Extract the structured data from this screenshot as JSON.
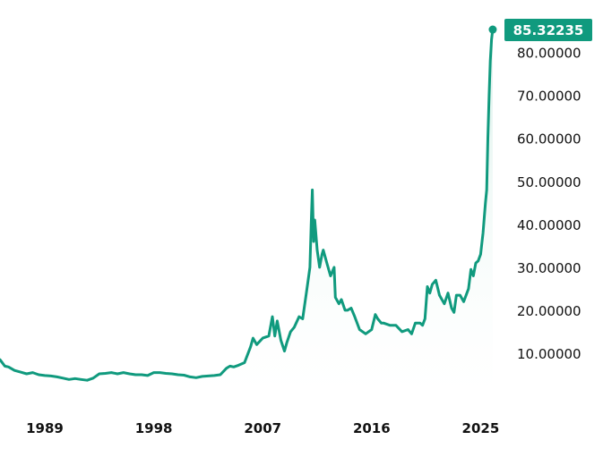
{
  "chart_data": {
    "type": "area",
    "title": "",
    "xlabel": "",
    "ylabel": "",
    "ylim": [
      0,
      87
    ],
    "xlim": [
      1985.3,
      2026.3
    ],
    "grid": false,
    "legend": "none",
    "y_ticks": [
      {
        "value": 10,
        "label": "10.00000"
      },
      {
        "value": 20,
        "label": "20.00000"
      },
      {
        "value": 30,
        "label": "30.00000"
      },
      {
        "value": 40,
        "label": "40.00000"
      },
      {
        "value": 50,
        "label": "50.00000"
      },
      {
        "value": 60,
        "label": "60.00000"
      },
      {
        "value": 70,
        "label": "70.00000"
      },
      {
        "value": 80,
        "label": "80.00000"
      }
    ],
    "x_ticks": [
      {
        "value": 1989,
        "label": "1989"
      },
      {
        "value": 1998,
        "label": "1998"
      },
      {
        "value": 2007,
        "label": "2007"
      },
      {
        "value": 2016,
        "label": "2016"
      },
      {
        "value": 2025,
        "label": "2025"
      }
    ],
    "last_value": {
      "label": "85.32235",
      "x": 2026.0,
      "y": 85.32235
    },
    "colors": {
      "line": "#109a7e",
      "fill_top": "#d6efe8",
      "fill_bottom": "#ffffff",
      "badge": "#109a7e",
      "badge_text": "#ffffff"
    },
    "series": [
      {
        "x": [
          1985.3,
          1985.7,
          1986.0,
          1986.5,
          1987.0,
          1987.5,
          1988.0,
          1988.5,
          1989.0,
          1989.5,
          1990.0,
          1990.5,
          1991.0,
          1991.5,
          1992.0,
          1992.5,
          1993.0,
          1993.5,
          1994.0,
          1994.5,
          1995.0,
          1995.5,
          1996.0,
          1996.5,
          1997.0,
          1997.5,
          1998.0,
          1998.5,
          1999.0,
          1999.5,
          2000.0,
          2000.5,
          2001.0,
          2001.5,
          2002.0,
          2002.5,
          2003.0,
          2003.5,
          2004.0,
          2004.3,
          2004.6,
          2005.0,
          2005.5,
          2006.0,
          2006.2,
          2006.5,
          2007.0,
          2007.5,
          2007.8,
          2008.0,
          2008.2,
          2008.5,
          2008.8,
          2009.0,
          2009.3,
          2009.6,
          2010.0,
          2010.3,
          2010.6,
          2010.9,
          2011.0,
          2011.1,
          2011.2,
          2011.3,
          2011.5,
          2011.7,
          2011.9,
          2012.0,
          2012.3,
          2012.6,
          2012.9,
          2013.0,
          2013.3,
          2013.5,
          2013.8,
          2014.0,
          2014.3,
          2014.6,
          2015.0,
          2015.5,
          2016.0,
          2016.3,
          2016.5,
          2016.8,
          2017.0,
          2017.5,
          2018.0,
          2018.5,
          2019.0,
          2019.3,
          2019.6,
          2020.0,
          2020.2,
          2020.4,
          2020.6,
          2020.8,
          2021.0,
          2021.3,
          2021.6,
          2022.0,
          2022.3,
          2022.6,
          2022.8,
          2023.0,
          2023.3,
          2023.6,
          2024.0,
          2024.2,
          2024.4,
          2024.6,
          2024.8,
          2025.0,
          2025.2,
          2025.4,
          2025.5,
          2025.6,
          2025.7,
          2025.8,
          2025.9,
          2026.0
        ],
        "y": [
          8.5,
          7.0,
          6.8,
          6.0,
          5.6,
          5.2,
          5.5,
          5.0,
          4.8,
          4.7,
          4.5,
          4.2,
          3.9,
          4.1,
          3.9,
          3.7,
          4.2,
          5.2,
          5.3,
          5.5,
          5.2,
          5.5,
          5.2,
          5.0,
          5.0,
          4.8,
          5.5,
          5.5,
          5.3,
          5.2,
          5.0,
          4.9,
          4.5,
          4.3,
          4.6,
          4.7,
          4.8,
          5.0,
          6.5,
          7.0,
          6.8,
          7.2,
          7.8,
          11.5,
          13.5,
          12.0,
          13.5,
          14.0,
          18.5,
          14.0,
          17.5,
          13.0,
          10.5,
          12.5,
          15.0,
          16.0,
          18.5,
          18.0,
          24.0,
          30.0,
          40.0,
          48.0,
          36.0,
          41.0,
          34.0,
          30.0,
          33.0,
          34.0,
          31.0,
          28.0,
          30.0,
          23.0,
          21.5,
          22.5,
          20.0,
          20.0,
          20.5,
          18.5,
          15.5,
          14.5,
          15.5,
          19.0,
          18.0,
          17.0,
          17.0,
          16.5,
          16.5,
          15.0,
          15.5,
          14.5,
          17.0,
          17.0,
          16.5,
          18.0,
          25.5,
          24.0,
          26.0,
          27.0,
          23.5,
          21.5,
          24.0,
          20.5,
          19.5,
          23.5,
          23.5,
          22.0,
          25.0,
          29.5,
          28.0,
          31.0,
          31.5,
          33.0,
          38.0,
          45.0,
          48.0,
          60.0,
          70.0,
          78.0,
          83.0,
          85.32235
        ]
      }
    ]
  }
}
